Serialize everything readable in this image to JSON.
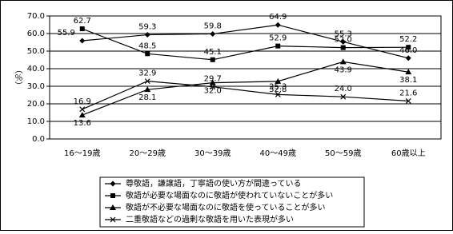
{
  "chart_data": {
    "type": "line",
    "y_label": "（％）",
    "categories": [
      "16～19歳",
      "20～29歳",
      "30～39歳",
      "40～49歳",
      "50～59歳",
      "60歳以上"
    ],
    "series": [
      {
        "name": "尊敬語，謙譲語，丁寧語の使い方が間違っている",
        "color": "#000000",
        "marker": "diamond",
        "values": [
          55.9,
          59.3,
          59.8,
          64.9,
          55.3,
          46.0
        ],
        "value_labels": [
          "55.9",
          "59.3",
          "59.8",
          "64.9",
          "55.3",
          "46.0"
        ]
      },
      {
        "name": "敬語が必要な場面なのに敬語が使われていないことが多い",
        "color": "#000000",
        "marker": "square",
        "values": [
          62.7,
          48.5,
          45.1,
          52.9,
          52.0,
          52.2
        ],
        "value_labels": [
          "62.7",
          "48.5",
          "45.1",
          "52.9",
          "52.0",
          "52.2"
        ]
      },
      {
        "name": "敬語が不必要な場面なのに敬語を使っていることが多い",
        "color": "#000000",
        "marker": "triangle",
        "values": [
          13.6,
          28.1,
          32.0,
          32.8,
          43.9,
          38.1
        ],
        "value_labels": [
          "13.6",
          "28.1",
          "32.0",
          "32.8",
          "43.9",
          "38.1"
        ]
      },
      {
        "name": "二重敬語などの過剰な敬語を用いた表現が多い",
        "color": "#000000",
        "marker": "cross",
        "values": [
          16.9,
          32.9,
          29.7,
          25.3,
          24.0,
          21.6
        ],
        "value_labels": [
          "16.9",
          "32.9",
          "29.7",
          "25.3",
          "24.0",
          "21.6"
        ]
      }
    ],
    "ylim": [
      0,
      70
    ],
    "yticks": [
      {
        "value": 0,
        "label": "0.0"
      },
      {
        "value": 10,
        "label": "10.0"
      },
      {
        "value": 20,
        "label": "20.0"
      },
      {
        "value": 30,
        "label": "30.0"
      },
      {
        "value": 40,
        "label": "40.0"
      },
      {
        "value": 50,
        "label": "50.0"
      },
      {
        "value": 60,
        "label": "60.0"
      },
      {
        "value": 70,
        "label": "70.0"
      }
    ],
    "grid": true
  }
}
